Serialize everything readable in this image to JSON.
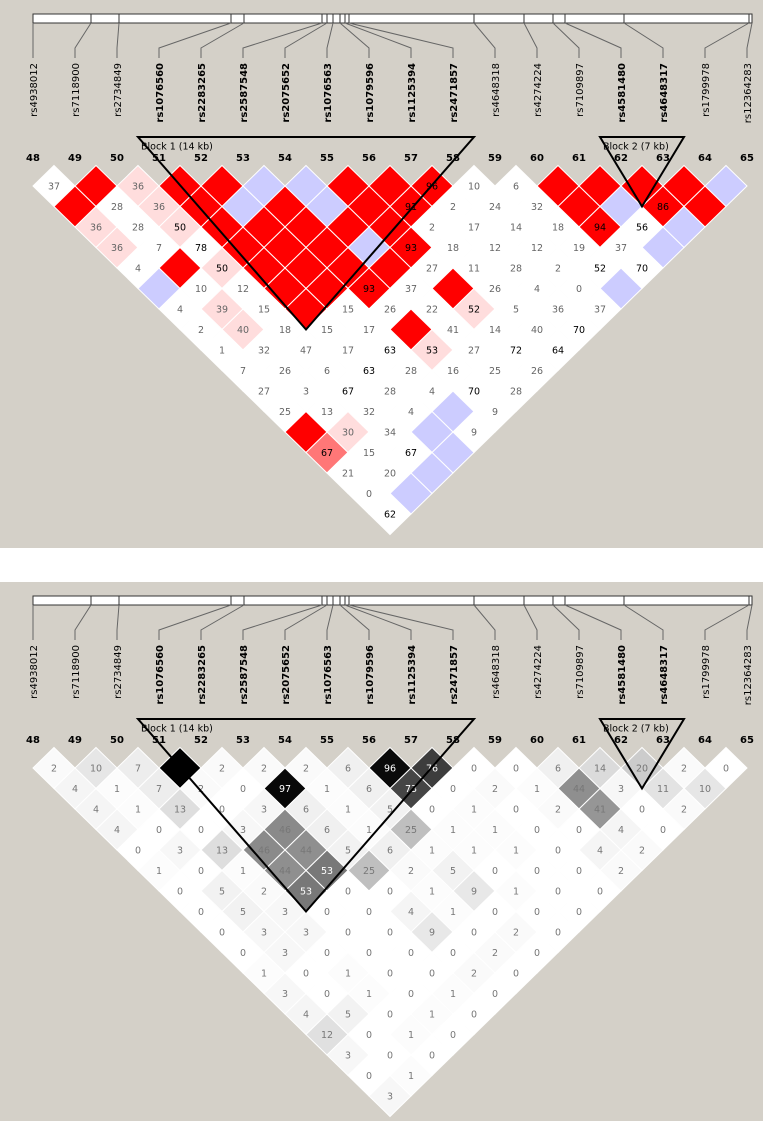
{
  "panels": [
    {
      "markers": {
        "numbers": [
          48,
          49,
          50,
          51,
          52,
          53,
          54,
          55,
          56,
          57,
          58,
          59,
          60,
          61,
          62,
          63,
          64,
          65
        ],
        "names": [
          "rs4938012",
          "rs7118900",
          "rs2734849",
          "rs1076560",
          "rs2283265",
          "rs2587548",
          "rs2075652",
          "rs1076563",
          "rs1079596",
          "rs1125394",
          "rs2471857",
          "rs4648318",
          "rs4274224",
          "rs7109897",
          "rs4581480",
          "rs4648317",
          "rs1799978",
          "rs12364283"
        ]
      },
      "blocks": [
        {
          "label": "Block 1 (14 kb)",
          "from": 51,
          "to": 58
        },
        {
          "label": "Block 2 (7 kb)",
          "from": 62,
          "to": 63
        }
      ],
      "cells": [
        [
          37,
          null,
          36,
          null,
          null,
          null,
          null,
          null,
          null,
          96,
          10,
          6,
          null,
          null,
          null,
          null,
          null
        ],
        [
          null,
          28,
          36,
          null,
          null,
          null,
          null,
          null,
          91,
          2,
          24,
          32,
          null,
          null,
          86,
          null
        ],
        [
          36,
          28,
          50,
          null,
          null,
          null,
          null,
          null,
          2,
          17,
          14,
          18,
          94,
          56,
          null
        ],
        [
          36,
          7,
          78,
          null,
          null,
          null,
          null,
          93,
          18,
          12,
          12,
          19,
          37,
          null
        ],
        [
          4,
          null,
          50,
          null,
          null,
          null,
          null,
          27,
          11,
          28,
          2,
          52,
          70
        ],
        [
          null,
          10,
          12,
          null,
          null,
          93,
          37,
          null,
          26,
          4,
          0,
          null
        ],
        [
          4,
          39,
          15,
          null,
          15,
          26,
          22,
          52,
          5,
          36,
          37
        ],
        [
          2,
          40,
          18,
          15,
          17,
          null,
          41,
          14,
          40,
          70
        ],
        [
          1,
          32,
          47,
          17,
          63,
          53,
          27,
          72,
          64
        ],
        [
          7,
          26,
          6,
          63,
          28,
          16,
          25,
          26
        ],
        [
          27,
          3,
          67,
          28,
          4,
          70,
          28
        ],
        [
          25,
          13,
          32,
          4,
          null,
          9
        ],
        [
          null,
          30,
          34,
          null,
          9
        ],
        [
          67,
          15,
          67,
          null
        ],
        [
          21,
          20,
          null
        ],
        [
          0,
          null
        ],
        [
          62
        ]
      ],
      "cell_colors": [
        [
          "#fff",
          "#f00",
          "#fdd",
          "#f00",
          "#f00",
          "#ccf",
          "#ccf",
          "#f00",
          "#f00",
          "#f00",
          "#fff",
          "#fff",
          "#f00",
          "#f00",
          "#f00",
          "#f00",
          "#ccf"
        ],
        [
          "#f00",
          "#fff",
          "#fdd",
          "#f00",
          "#ccf",
          "#f00",
          "#ccf",
          "#f00",
          "#f00",
          "#fff",
          "#fff",
          "#fff",
          "#f00",
          "#ccf",
          "#f00",
          "#f00"
        ],
        [
          "#fdd",
          "#fff",
          "#fdd",
          "#f00",
          "#f00",
          "#f00",
          "#f00",
          "#f00",
          "#fff",
          "#fff",
          "#fff",
          "#fff",
          "#f00",
          "#fff",
          "#ccf"
        ],
        [
          "#fdd",
          "#fff",
          "#fff",
          "#f00",
          "#f00",
          "#f00",
          "#ccf",
          "#f00",
          "#fff",
          "#fff",
          "#fff",
          "#fff",
          "#fff",
          "#ccf"
        ],
        [
          "#fff",
          "#f00",
          "#fdd",
          "#f00",
          "#f00",
          "#f00",
          "#f00",
          "#fff",
          "#fff",
          "#fff",
          "#fff",
          "#fff",
          "#fff"
        ],
        [
          "#ccf",
          "#fff",
          "#fff",
          "#f00",
          "#f00",
          "#f00",
          "#fff",
          "#f00",
          "#fff",
          "#fff",
          "#fff",
          "#ccf"
        ],
        [
          "#fff",
          "#fdd",
          "#fff",
          "#f00",
          "#fff",
          "#fff",
          "#fff",
          "#fdd",
          "#fff",
          "#fff",
          "#fff"
        ],
        [
          "#fff",
          "#fdd",
          "#fff",
          "#fff",
          "#fff",
          "#f00",
          "#fff",
          "#fff",
          "#fff",
          "#fff"
        ],
        [
          "#fff",
          "#fff",
          "#fff",
          "#fff",
          "#fff",
          "#fdd",
          "#fff",
          "#fff",
          "#fff"
        ],
        [
          "#fff",
          "#fff",
          "#fff",
          "#fff",
          "#fff",
          "#fff",
          "#fff",
          "#fff"
        ],
        [
          "#fff",
          "#fff",
          "#fff",
          "#fff",
          "#fff",
          "#fff",
          "#fff"
        ],
        [
          "#fff",
          "#fff",
          "#fff",
          "#fff",
          "#ccf",
          "#fff"
        ],
        [
          "#f00",
          "#fdd",
          "#fff",
          "#ccf",
          "#fff"
        ],
        [
          "#f77",
          "#fff",
          "#fff",
          "#ccf"
        ],
        [
          "#fff",
          "#fff",
          "#ccf"
        ],
        [
          "#fff",
          "#ccf"
        ],
        [
          "#fff"
        ]
      ]
    },
    {
      "markers": {
        "numbers": [
          48,
          49,
          50,
          51,
          52,
          53,
          54,
          55,
          56,
          57,
          58,
          59,
          60,
          61,
          62,
          63,
          64,
          65
        ],
        "names": [
          "rs4938012",
          "rs7118900",
          "rs2734849",
          "rs1076560",
          "rs2283265",
          "rs2587548",
          "rs2075652",
          "rs1076563",
          "rs1079596",
          "rs1125394",
          "rs2471857",
          "rs4648318",
          "rs4274224",
          "rs7109897",
          "rs4581480",
          "rs4648317",
          "rs1799978",
          "rs12364283"
        ]
      },
      "blocks": [
        {
          "label": "Block 1 (14 kb)",
          "from": 51,
          "to": 58
        },
        {
          "label": "Block 2 (7 kb)",
          "from": 62,
          "to": 63
        }
      ],
      "fill_scale": [
        "#ffffff",
        "#000000"
      ],
      "cells": [
        [
          2,
          10,
          7,
          null,
          2,
          2,
          2,
          6,
          96,
          76,
          0,
          0,
          6,
          14,
          20,
          2,
          0
        ],
        [
          4,
          1,
          7,
          2,
          0,
          97,
          1,
          6,
          73,
          0,
          2,
          1,
          44,
          3,
          11,
          10
        ],
        [
          4,
          1,
          13,
          0,
          3,
          6,
          1,
          5,
          0,
          1,
          0,
          2,
          41,
          0,
          2
        ],
        [
          4,
          0,
          0,
          3,
          46,
          6,
          1,
          25,
          1,
          1,
          0,
          0,
          4,
          0
        ],
        [
          0,
          3,
          13,
          46,
          44,
          5,
          6,
          1,
          1,
          1,
          0,
          4,
          2
        ],
        [
          1,
          0,
          1,
          44,
          53,
          25,
          2,
          5,
          0,
          0,
          0,
          2
        ],
        [
          0,
          5,
          2,
          53,
          0,
          0,
          1,
          9,
          1,
          0,
          0
        ],
        [
          0,
          5,
          3,
          0,
          0,
          4,
          1,
          0,
          0,
          0
        ],
        [
          0,
          3,
          3,
          0,
          0,
          9,
          0,
          2,
          0
        ],
        [
          0,
          3,
          0,
          0,
          0,
          0,
          2,
          0
        ],
        [
          1,
          0,
          1,
          0,
          0,
          2,
          0
        ],
        [
          3,
          0,
          1,
          0,
          1,
          0
        ],
        [
          4,
          5,
          0,
          1,
          0
        ],
        [
          12,
          0,
          1,
          0
        ],
        [
          3,
          0,
          0
        ],
        [
          0,
          1
        ],
        [
          3
        ]
      ]
    }
  ]
}
